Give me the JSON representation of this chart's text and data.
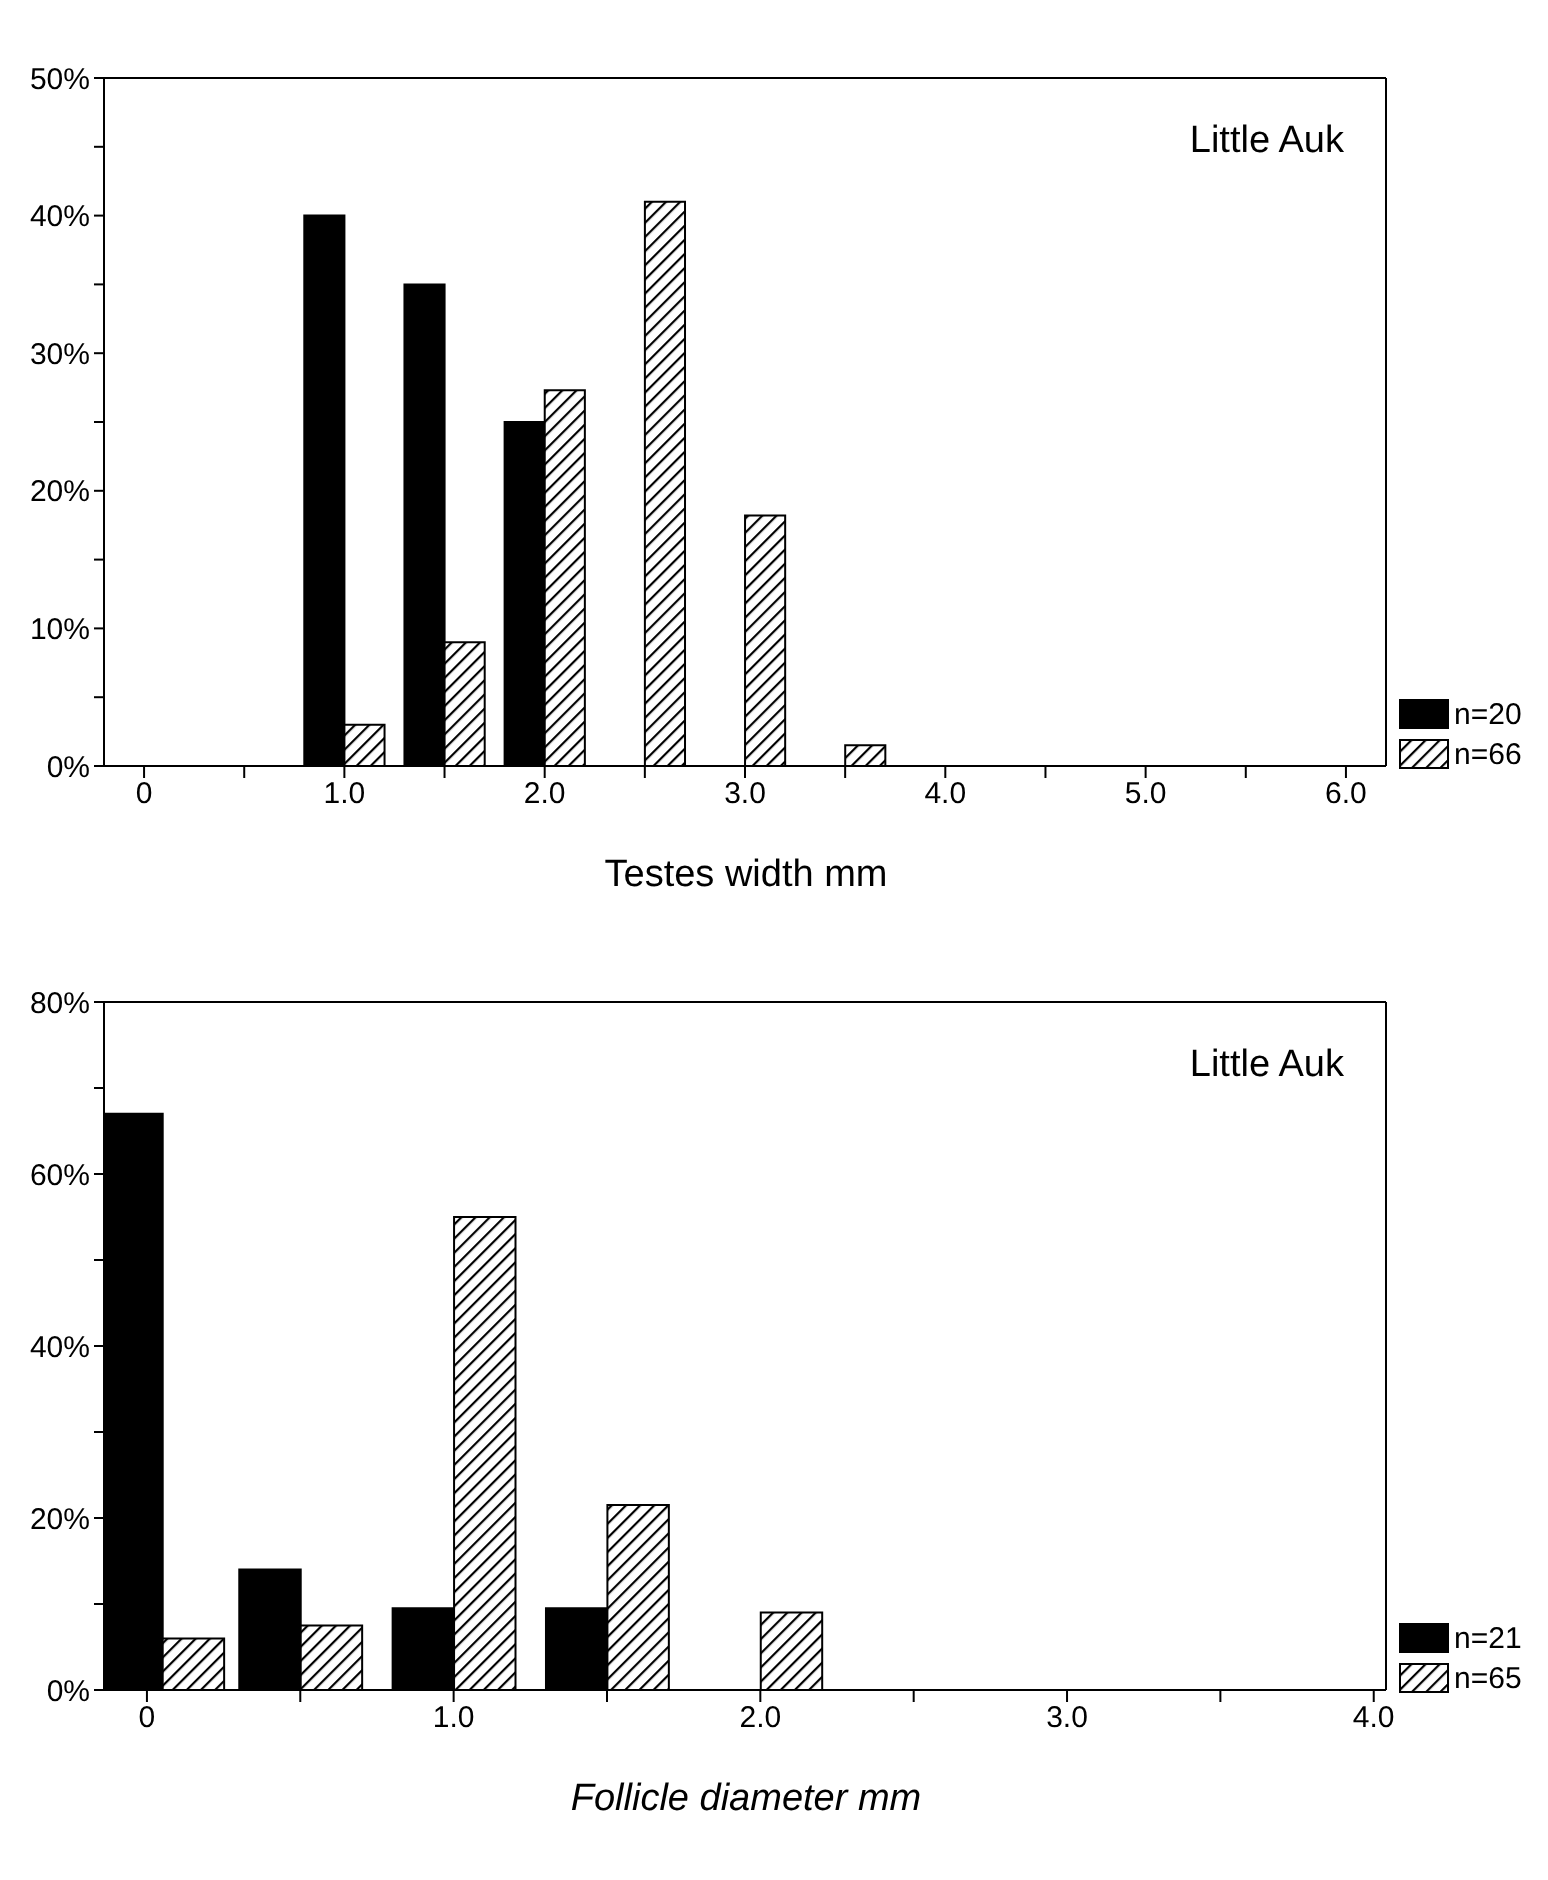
{
  "chart_data": [
    {
      "type": "bar",
      "xlabel": "Testes width  mm",
      "annotations": [
        "Little Auk"
      ],
      "x": [
        1.0,
        1.5,
        2.0,
        2.5,
        3.0,
        3.5
      ],
      "series": [
        {
          "name": "n=20",
          "color": "#000000",
          "values": [
            40,
            35,
            25,
            null,
            null,
            null
          ]
        },
        {
          "name": "n=66",
          "color": "#000000",
          "values": [
            3,
            9,
            27.3,
            41,
            18.2,
            1.5
          ]
        }
      ],
      "xlim": [
        -0.2,
        6.2
      ],
      "xticks": [
        0,
        {
          "value": 0.5,
          "label": null
        },
        {
          "value": 1,
          "label": "1.0"
        },
        {
          "value": 1.5,
          "label": null
        },
        {
          "value": 2,
          "label": "2.0"
        },
        {
          "value": 2.5,
          "label": null
        },
        {
          "value": 3,
          "label": "3.0"
        },
        {
          "value": 3.5,
          "label": null
        },
        {
          "value": 4,
          "label": "4.0"
        },
        {
          "value": 4.5,
          "label": null
        },
        {
          "value": 5,
          "label": "5.0"
        },
        {
          "value": 5.5,
          "label": null
        },
        {
          "value": 6,
          "label": "6.0"
        }
      ],
      "ylim": [
        0,
        50
      ],
      "yticks": [
        {
          "value": 0,
          "label": "0%"
        },
        {
          "value": 5,
          "label": null
        },
        {
          "value": 10,
          "label": "10%"
        },
        {
          "value": 15,
          "label": null
        },
        {
          "value": 20,
          "label": "20%"
        },
        {
          "value": 25,
          "label": null
        },
        {
          "value": 30,
          "label": "30%"
        },
        {
          "value": 35,
          "label": null
        },
        {
          "value": 40,
          "label": "40%"
        },
        {
          "value": 45,
          "label": null
        },
        {
          "value": 50,
          "label": "50%"
        }
      ],
      "grid": false,
      "legend": "bottom right"
    },
    {
      "type": "bar",
      "xlabel": "Follicle diameter  mm",
      "annotations": [
        "Little Auk"
      ],
      "x": [
        0.05,
        0.5,
        1.0,
        1.5,
        2.0
      ],
      "series": [
        {
          "name": "n=21",
          "color": "#000000",
          "values": [
            67,
            14,
            9.5,
            9.5,
            null
          ]
        },
        {
          "name": "n=65",
          "color": "#000000",
          "values": [
            6,
            7.5,
            55,
            21.5,
            9
          ]
        }
      ],
      "xlim": [
        -0.14,
        4.04
      ],
      "xticks": [
        0,
        {
          "value": 0.5,
          "label": null
        },
        {
          "value": 1,
          "label": "1.0"
        },
        {
          "value": 1.5,
          "label": null
        },
        {
          "value": 2,
          "label": "2.0"
        },
        {
          "value": 2.5,
          "label": null
        },
        {
          "value": 3,
          "label": "3.0"
        },
        {
          "value": 3.5,
          "label": null
        },
        {
          "value": 4,
          "label": "4.0"
        }
      ],
      "ylim": [
        0,
        80
      ],
      "yticks": [
        {
          "value": 0,
          "label": "0%"
        },
        {
          "value": 10,
          "label": null
        },
        {
          "value": 20,
          "label": "20%"
        },
        {
          "value": 30,
          "label": null
        },
        {
          "value": 40,
          "label": "40%"
        },
        {
          "value": 50,
          "label": null
        },
        {
          "value": 60,
          "label": "60%"
        },
        {
          "value": 70,
          "label": null
        },
        {
          "value": 80,
          "label": "80%"
        }
      ],
      "grid": false,
      "legend": "bottom right"
    }
  ]
}
